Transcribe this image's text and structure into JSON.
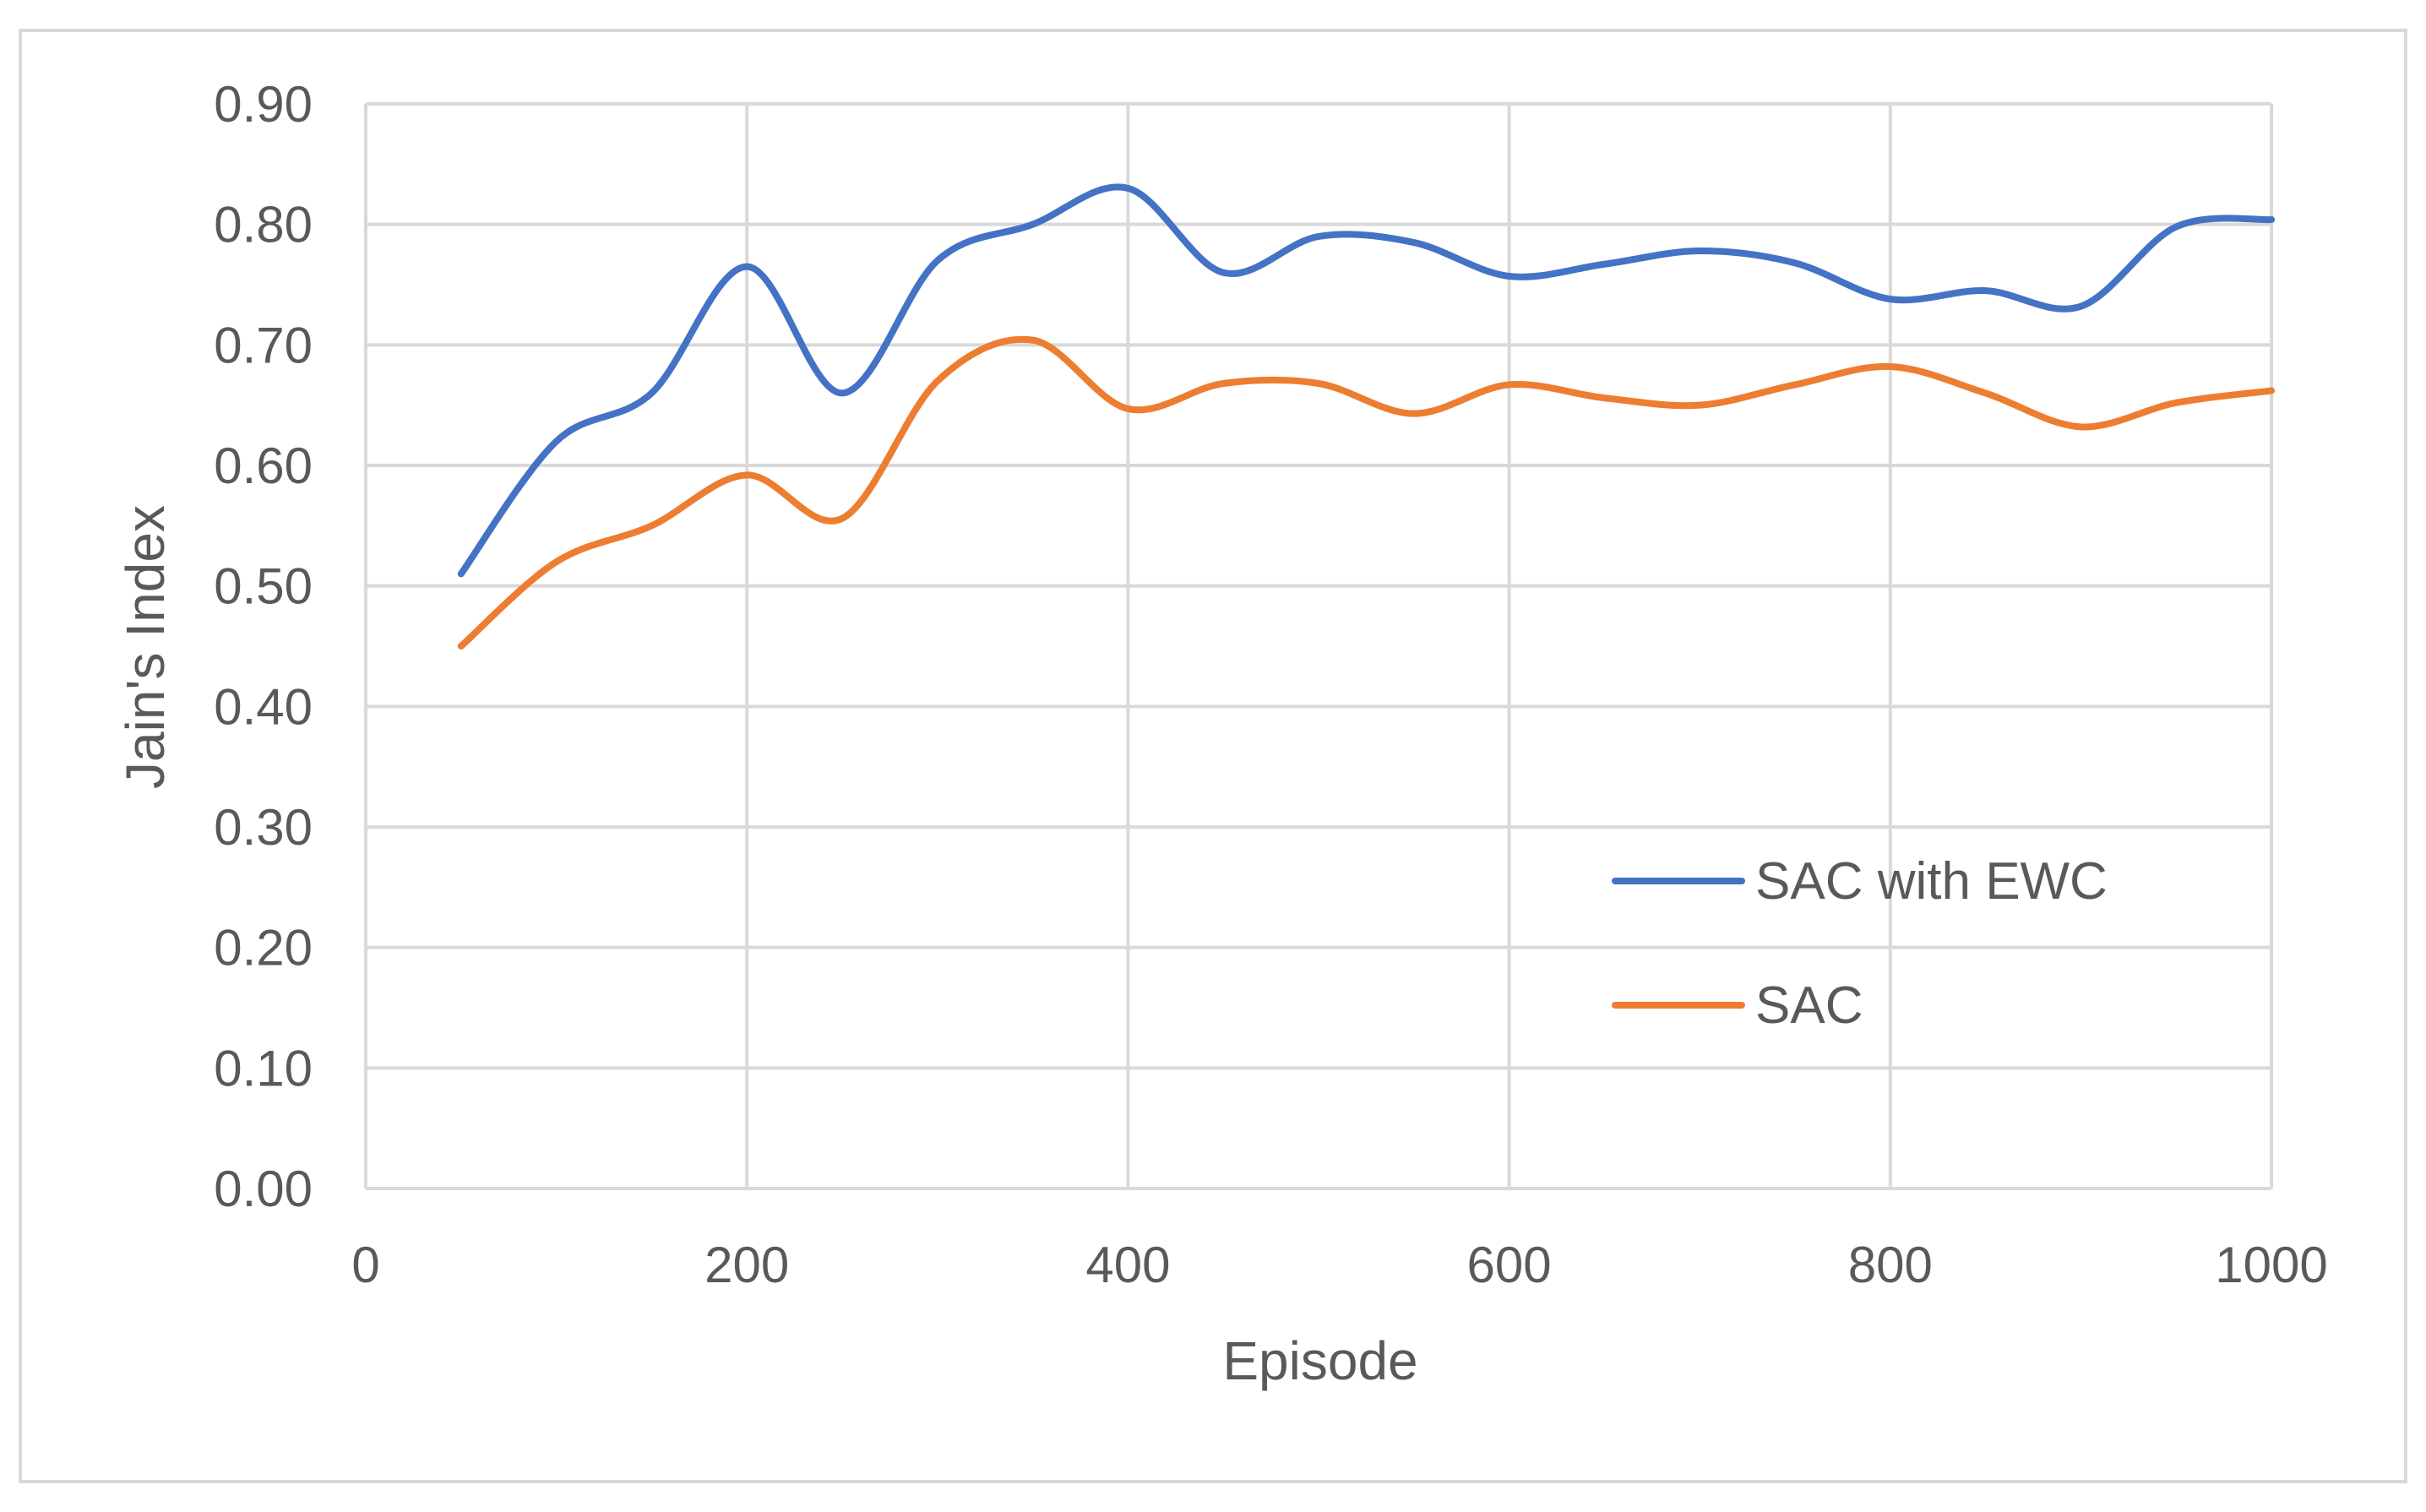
{
  "chart_data": {
    "type": "line",
    "xlabel": "Episode",
    "ylabel": "Jain's Index",
    "xlim": [
      0,
      1000
    ],
    "ylim": [
      0,
      0.9
    ],
    "x_ticks": [
      "0",
      "200",
      "400",
      "600",
      "800",
      "1000"
    ],
    "y_ticks": [
      "0.00",
      "0.10",
      "0.20",
      "0.30",
      "0.40",
      "0.50",
      "0.60",
      "0.70",
      "0.80",
      "0.90"
    ],
    "grid": true,
    "legend_position": "right-center",
    "x": [
      50,
      100,
      150,
      200,
      250,
      300,
      350,
      400,
      450,
      500,
      550,
      600,
      650,
      700,
      750,
      800,
      850,
      900,
      950,
      1000
    ],
    "series": [
      {
        "name": "SAC with EWC",
        "color": "#4472c4",
        "values": [
          0.51,
          0.62,
          0.66,
          0.765,
          0.66,
          0.77,
          0.8,
          0.83,
          0.76,
          0.79,
          0.785,
          0.757,
          0.767,
          0.778,
          0.768,
          0.738,
          0.745,
          0.732,
          0.798,
          0.804
        ]
      },
      {
        "name": "SAC",
        "color": "#ed7d31",
        "values": [
          0.45,
          0.52,
          0.55,
          0.592,
          0.556,
          0.67,
          0.704,
          0.647,
          0.668,
          0.668,
          0.643,
          0.667,
          0.656,
          0.65,
          0.667,
          0.682,
          0.66,
          0.632,
          0.652,
          0.662
        ]
      }
    ]
  }
}
